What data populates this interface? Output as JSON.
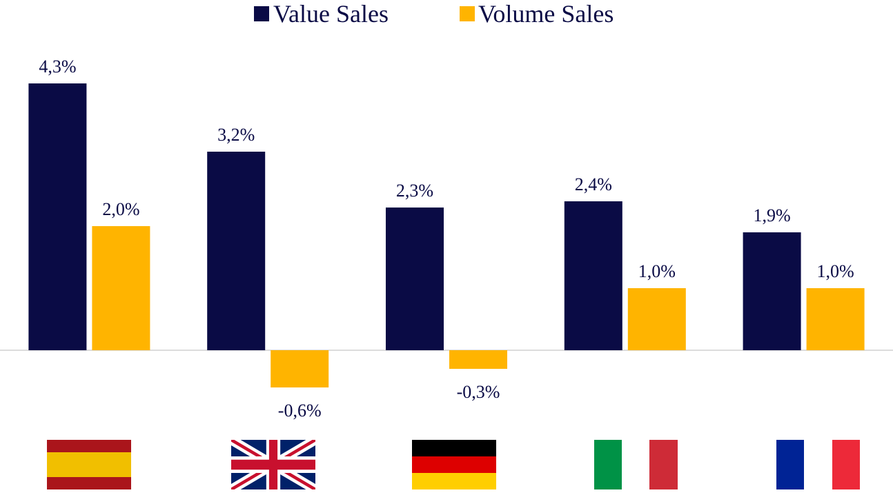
{
  "chart_data": {
    "type": "bar",
    "categories": [
      null,
      null,
      null,
      null,
      null
    ],
    "series": [
      {
        "name": "Value Sales",
        "color": "#0a0b45",
        "values": [
          4.3,
          3.2,
          2.3,
          2.4,
          1.9
        ],
        "value_labels": [
          "4,3%",
          "3,2%",
          "2,3%",
          "2,4%",
          "1,9%"
        ]
      },
      {
        "name": "Volume Sales",
        "color": "#ffb400",
        "values": [
          2.0,
          -0.6,
          -0.3,
          1.0,
          1.0
        ],
        "value_labels": [
          "2,0%",
          "-0,6%",
          "-0,3%",
          "1,0%",
          "1,0%"
        ]
      }
    ],
    "ylim": [
      -1,
      5
    ]
  }
}
